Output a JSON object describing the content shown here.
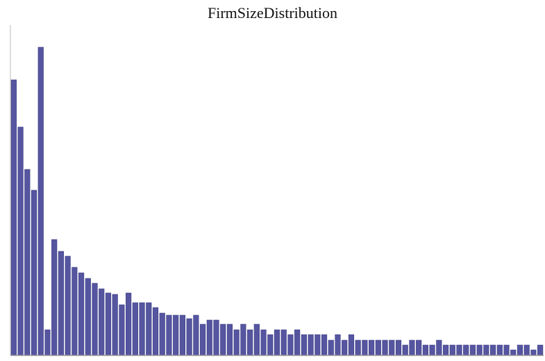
{
  "chart_data": {
    "type": "bar",
    "title": "FirmSizeDistribution",
    "xlabel": "",
    "ylabel": "",
    "ylim": [
      0,
      470
    ],
    "grid": false,
    "bar_color": "#5555a0",
    "values": [
      397,
      329,
      268,
      238,
      444,
      37,
      167,
      150,
      143,
      127,
      119,
      111,
      104,
      96,
      90,
      88,
      73,
      90,
      76,
      76,
      76,
      69,
      61,
      58,
      58,
      58,
      53,
      58,
      45,
      51,
      51,
      45,
      45,
      37,
      45,
      37,
      45,
      37,
      30,
      37,
      37,
      30,
      37,
      30,
      30,
      30,
      30,
      22,
      30,
      22,
      30,
      22,
      22,
      22,
      22,
      22,
      22,
      22,
      15,
      22,
      22,
      15,
      15,
      22,
      15,
      15,
      15,
      15,
      15,
      15,
      15,
      15,
      15,
      15,
      8,
      15,
      15,
      8,
      15
    ]
  }
}
